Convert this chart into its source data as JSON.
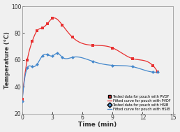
{
  "pvdf_scatter_x": [
    0,
    0.5,
    1,
    1.5,
    2,
    2.5,
    3,
    4,
    5,
    7,
    9,
    11,
    13,
    13.5
  ],
  "pvdf_scatter_y": [
    31,
    60,
    74,
    82,
    84,
    87,
    91,
    86,
    77,
    71,
    69,
    61,
    56,
    51
  ],
  "hsib_scatter_x": [
    0,
    0.5,
    1,
    1.5,
    2,
    2.5,
    3,
    3.5,
    4,
    5,
    7,
    9,
    11,
    13,
    13.5
  ],
  "hsib_scatter_y": [
    29,
    54,
    55,
    57,
    63,
    64,
    63,
    65,
    62,
    62,
    59,
    56,
    55,
    51,
    51
  ],
  "pvdf_color": "#e83030",
  "hsib_color": "#4488cc",
  "xlabel": "Time (min)",
  "ylabel": "Temperature (°C)",
  "xlim": [
    0,
    15
  ],
  "ylim": [
    20,
    100
  ],
  "yticks": [
    20,
    40,
    60,
    80,
    100
  ],
  "xticks": [
    0,
    3,
    6,
    9,
    12,
    15
  ],
  "legend_labels": [
    "Tested data for pouch with PVDF",
    "Fitted curve for pouch with PVDF",
    "Tested data for pouch with HSIB",
    "Fitted curve for pouch with HSIB"
  ],
  "bg_color": "#f0f0f0"
}
